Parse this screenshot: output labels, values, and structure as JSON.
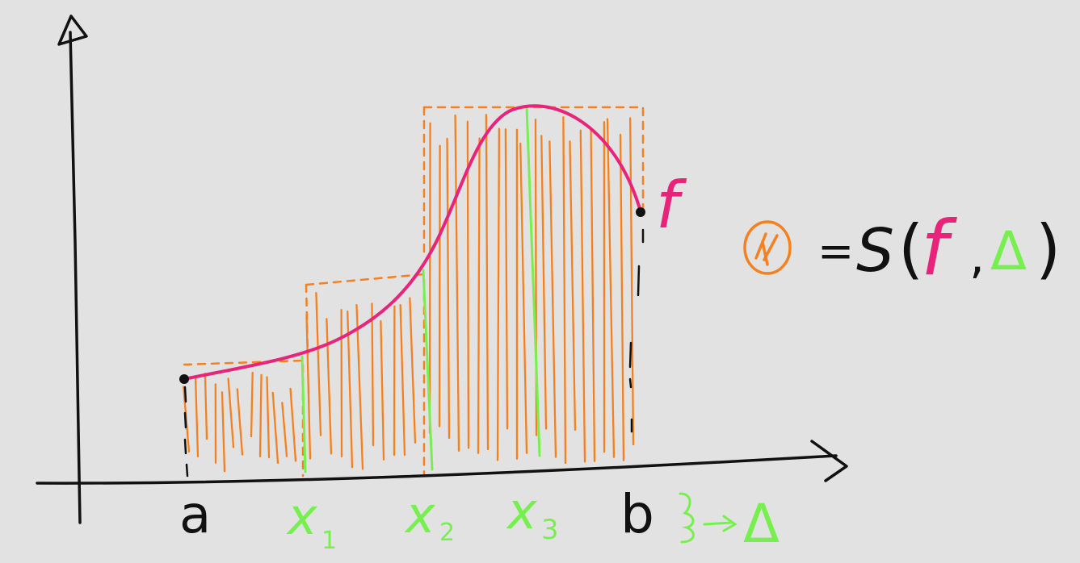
{
  "colors": {
    "background": "#e3e2e3",
    "axis": "#111111",
    "function_curve": "#e8247a",
    "upper_sum_fill": "#f5801f",
    "partition": "#77f04f"
  },
  "labels": {
    "a": "a",
    "x1": "x",
    "x1_sub": "1",
    "x2": "x",
    "x2_sub": "2",
    "x3": "x",
    "x3_sub": "3",
    "b": "b",
    "f": "f"
  },
  "partition_symbol": "Δ",
  "formula": {
    "equals": "=",
    "operator": "S",
    "open_paren": "(",
    "function": "f",
    "comma": ",",
    "partition": "Δ",
    "close_paren": ")"
  },
  "icons": {
    "circled_region": "circled-region-icon",
    "brace": "brace-icon",
    "arrow": "arrow-icon"
  }
}
